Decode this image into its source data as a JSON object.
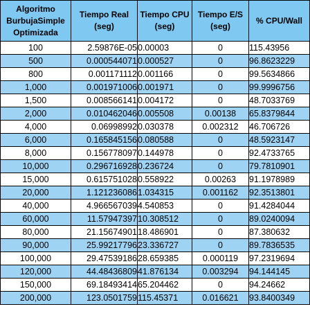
{
  "table": {
    "headers": [
      [
        "Algoritmo",
        "BurbujaSimple",
        "Optimizada"
      ],
      [
        "Tiempo Real",
        "(seg)"
      ],
      [
        "Tiempo CPU",
        "(seg)"
      ],
      [
        "Tiempo E/S",
        "(seg)"
      ],
      [
        "% CPU/Wall"
      ]
    ],
    "rows": [
      [
        "100",
        "2.59876E-05",
        "0.00003",
        "0",
        "115.43956"
      ],
      [
        "500",
        "0.000544071",
        "0.000527",
        "0",
        "96.8623229"
      ],
      [
        "800",
        "0.001171112",
        "0.001166",
        "0",
        "99.5634866"
      ],
      [
        "1,000",
        "0.001971006",
        "0.001971",
        "0",
        "99.9996756"
      ],
      [
        "1,500",
        "0.008566141",
        "0.004172",
        "0",
        "48.7033769"
      ],
      [
        "2,000",
        "0.010462046",
        "0.005508",
        "0.00138",
        "65.8379844"
      ],
      [
        "4,000",
        "0.06998992",
        "0.030378",
        "0.002312",
        "46.706726"
      ],
      [
        "6,000",
        "0.165845156",
        "0.080588",
        "0",
        "48.5923147"
      ],
      [
        "8,000",
        "0.156778097",
        "0.144978",
        "0",
        "92.4733765"
      ],
      [
        "10,000",
        "0.296716928",
        "0.236724",
        "0",
        "79.7810901"
      ],
      [
        "15,000",
        "0.615751028",
        "0.558922",
        "0.00263",
        "91.1978989"
      ],
      [
        "20,000",
        "1.121236086",
        "1.034315",
        "0.001162",
        "92.3513801"
      ],
      [
        "40,000",
        "4.966567039",
        "4.540853",
        "0",
        "91.4284044"
      ],
      [
        "60,000",
        "11.57947397",
        "10.308512",
        "0",
        "89.0240094"
      ],
      [
        "80,000",
        "21.15674901",
        "18.486901",
        "0",
        "87.380632"
      ],
      [
        "90,000",
        "25.99217796",
        "23.336727",
        "0",
        "89.7836535"
      ],
      [
        "100,000",
        "29.47539186",
        "28.659385",
        "0.000119",
        "97.2319694"
      ],
      [
        "120,000",
        "44.48436809",
        "41.876134",
        "0.003294",
        "94.144145"
      ],
      [
        "150,000",
        "69.18493414",
        "65.204462",
        "0",
        "94.24662"
      ],
      [
        "200,000",
        "123.0501759",
        "115.45371",
        "0.016621",
        "93.8400349"
      ]
    ]
  },
  "colors": {
    "header_bg": "#7ec8f2",
    "odd_row_bg": "#9fd3f4",
    "even_row_bg": "#ffffff",
    "grid": "#000000"
  }
}
